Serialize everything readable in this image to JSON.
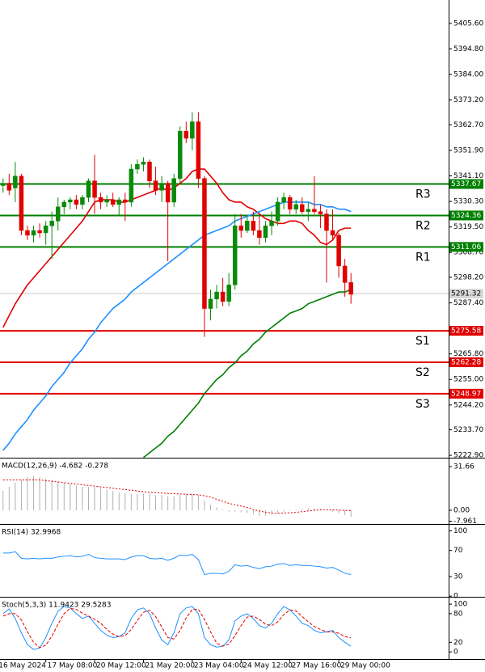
{
  "chart_data": [
    {
      "type": "candlestick",
      "xlim": [
        -0.5,
        73
      ],
      "xticks": [
        {
          "value": -1,
          "label": "16 May 2024"
        },
        {
          "value": 7,
          "label": "17 May 08:00"
        },
        {
          "value": 15,
          "label": "20 May 12:00"
        },
        {
          "value": 23,
          "label": "21 May 20:00"
        },
        {
          "value": 31,
          "label": "23 May 04:00"
        },
        {
          "value": 39,
          "label": "24 May 12:00"
        },
        {
          "value": 47,
          "label": "27 May 16:00"
        },
        {
          "value": 55,
          "label": "29 May 00:00"
        }
      ],
      "ylim": [
        5221.9,
        5415.5
      ],
      "yticks": [
        {
          "value": 5405.6,
          "label": "5405.60"
        },
        {
          "value": 5394.8,
          "label": "5394.80"
        },
        {
          "value": 5384,
          "label": "5384.00"
        },
        {
          "value": 5373.2,
          "label": "5373.20"
        },
        {
          "value": 5362.7,
          "label": "5362.70"
        },
        {
          "value": 5351.9,
          "label": "5351.90"
        },
        {
          "value": 5341.1,
          "label": "5341.10"
        },
        {
          "value": 5330.3,
          "label": "5330.30"
        },
        {
          "value": 5319.5,
          "label": "5319.50"
        },
        {
          "value": 5308.7,
          "label": "5308.70"
        },
        {
          "value": 5298.2,
          "label": "5298.20"
        },
        {
          "value": 5287.4,
          "label": "5287.40"
        },
        {
          "value": 5265.8,
          "label": "5265.80"
        },
        {
          "value": 5255,
          "label": "5255.00"
        },
        {
          "value": 5244.2,
          "label": "5244.20"
        },
        {
          "value": 5233.7,
          "label": "5233.70"
        },
        {
          "value": 5222.9,
          "label": "5222.90"
        }
      ],
      "up_color": "#0a8a0a",
      "down_color": "#e00000",
      "open": [
        5337,
        5338,
        5336,
        5341,
        5318,
        5316,
        5318,
        5317,
        5320,
        5322,
        5328,
        5330,
        5331,
        5329,
        5332,
        5339,
        5332,
        5330,
        5331,
        5329,
        5331,
        5330,
        5344,
        5346,
        5347,
        5339,
        5335,
        5338,
        5330,
        5340,
        5360,
        5357,
        5364,
        5340,
        5285,
        5289,
        5292,
        5288,
        5295,
        5320,
        5318,
        5322,
        5318,
        5315,
        5320,
        5322,
        5330,
        5332,
        5327,
        5329,
        5326,
        5327,
        5326,
        5325,
        5318,
        5316,
        5303,
        5296
      ],
      "high": [
        5340,
        5342,
        5347,
        5342,
        5320,
        5320,
        5321,
        5322,
        5326,
        5332,
        5331,
        5332,
        5333,
        5333,
        5340,
        5350,
        5334,
        5333,
        5334,
        5332,
        5334,
        5346,
        5348,
        5349,
        5348,
        5345,
        5341,
        5339,
        5342,
        5362,
        5364,
        5368,
        5368,
        5341,
        5293,
        5295,
        5298,
        5300,
        5325,
        5325,
        5324,
        5326,
        5324,
        5322,
        5326,
        5332,
        5334,
        5333,
        5331,
        5332,
        5330,
        5341,
        5329,
        5327,
        5327,
        5317,
        5306,
        5300
      ],
      "low": [
        5334,
        5333,
        5330,
        5316,
        5314,
        5313,
        5315,
        5312,
        5306,
        5318,
        5325,
        5327,
        5327,
        5327,
        5330,
        5325,
        5327,
        5328,
        5328,
        5324,
        5322,
        5328,
        5342,
        5343,
        5336,
        5333,
        5330,
        5305,
        5328,
        5338,
        5355,
        5352,
        5336,
        5273,
        5280,
        5285,
        5286,
        5286,
        5293,
        5315,
        5317,
        5316,
        5312,
        5313,
        5316,
        5320,
        5327,
        5325,
        5325,
        5325,
        5322,
        5325,
        5319,
        5296,
        5314,
        5298,
        5290,
        5287
      ],
      "close": [
        5338,
        5335,
        5341,
        5318,
        5316,
        5318,
        5317,
        5320,
        5322,
        5328,
        5330,
        5331,
        5329,
        5332,
        5339,
        5332,
        5330,
        5331,
        5329,
        5331,
        5330,
        5344,
        5346,
        5347,
        5339,
        5335,
        5338,
        5330,
        5340,
        5360,
        5357,
        5364,
        5340,
        5285,
        5289,
        5292,
        5288,
        5295,
        5320,
        5318,
        5322,
        5318,
        5315,
        5320,
        5322,
        5330,
        5332,
        5327,
        5329,
        5326,
        5327,
        5326,
        5325,
        5318,
        5316,
        5303,
        5296,
        5291
      ],
      "series": [
        {
          "color": "#e00000",
          "values": [
            5277,
            5282,
            5287,
            5291,
            5295,
            5298,
            5301,
            5304,
            5307,
            5310,
            5313,
            5316,
            5319,
            5322,
            5326,
            5330,
            5331,
            5331,
            5331,
            5330,
            5330,
            5331,
            5332,
            5333,
            5334,
            5335,
            5336,
            5335,
            5336,
            5338,
            5340,
            5343,
            5344,
            5344,
            5341,
            5338,
            5334,
            5331,
            5330,
            5330,
            5328,
            5327,
            5325,
            5323,
            5322,
            5321,
            5321,
            5322,
            5322,
            5321,
            5318,
            5316,
            5313,
            5312,
            5314,
            5318,
            5319,
            5319
          ]
        },
        {
          "color": "#1e90ff",
          "values": [
            5225,
            5228,
            5232,
            5235,
            5238,
            5242,
            5245,
            5248,
            5252,
            5255,
            5258,
            5262,
            5265,
            5268,
            5272,
            5275,
            5279,
            5282,
            5285,
            5287,
            5289,
            5292,
            5294,
            5296,
            5298,
            5300,
            5302,
            5304,
            5306,
            5308,
            5310,
            5312,
            5314,
            5316,
            5317,
            5318,
            5319,
            5320,
            5322,
            5323,
            5324,
            5325,
            5326,
            5327,
            5328,
            5329,
            5330,
            5330,
            5330,
            5330,
            5330,
            5329,
            5329,
            5328,
            5328,
            5327,
            5327,
            5326
          ]
        },
        {
          "color": "#008000",
          "values": [
            null,
            null,
            null,
            null,
            null,
            null,
            null,
            null,
            null,
            null,
            null,
            null,
            null,
            null,
            null,
            null,
            null,
            null,
            null,
            null,
            null,
            null,
            null,
            5222,
            5224,
            5226,
            5228,
            5231,
            5233,
            5236,
            5239,
            5242,
            5245,
            5249,
            5252,
            5255,
            5257,
            5260,
            5262,
            5265,
            5267,
            5270,
            5272,
            5275,
            5277,
            5279,
            5281,
            5283,
            5284,
            5285,
            5287,
            5288,
            5289,
            5290,
            5291,
            5292,
            5292,
            5293
          ]
        }
      ],
      "levels": [
        {
          "name": "R3",
          "value": 5337.67,
          "color": "#008000"
        },
        {
          "name": "R2",
          "value": 5324.36,
          "color": "#008000"
        },
        {
          "name": "R1",
          "value": 5311.06,
          "color": "#008000"
        },
        {
          "name": "S1",
          "value": 5275.58,
          "color": "#e00000"
        },
        {
          "name": "S2",
          "value": 5262.28,
          "color": "#e00000"
        },
        {
          "name": "S3",
          "value": 5248.97,
          "color": "#e00000"
        }
      ],
      "last_price": 5291.32
    },
    {
      "type": "macd",
      "title": "MACD(12,26,9) -4.682 -0.278",
      "ylim": [
        -9.97,
        36.94
      ],
      "yticks": [
        31.66,
        {
          "value": 0,
          "label": "0.00"
        },
        -7.961
      ],
      "series": [
        {
          "kind": "histogram",
          "color": "#b0b0b0",
          "values": [
            14,
            17,
            20,
            22,
            24,
            25,
            24,
            23,
            22,
            21,
            20,
            19,
            18,
            17,
            17,
            17,
            16,
            15,
            14,
            13,
            12,
            12,
            12,
            12,
            12,
            11,
            11,
            10,
            10,
            11,
            12,
            12,
            11,
            7,
            4,
            2,
            0.5,
            -1,
            -1,
            -1.5,
            -2,
            -3,
            -4,
            -4,
            -3,
            -2,
            -1,
            -0.5,
            0.5,
            1,
            1.5,
            1.5,
            1,
            0,
            -1,
            -2,
            -3.5,
            -4.682
          ]
        },
        {
          "kind": "dotted",
          "color": "#e00000",
          "values": [
            22,
            22,
            22,
            22,
            22,
            22,
            22,
            21.5,
            21,
            20.5,
            20,
            19.5,
            19,
            18.5,
            18,
            17.5,
            17,
            16.5,
            16,
            15.5,
            15,
            14.5,
            14,
            13.5,
            13,
            12.8,
            12.5,
            12.2,
            12,
            11.8,
            11.6,
            11.4,
            11.2,
            10.5,
            9.5,
            8,
            6.5,
            5,
            4,
            3,
            2,
            0.5,
            -0.5,
            -1.5,
            -2,
            -2.2,
            -2,
            -1.8,
            -1.5,
            -1,
            -0.5,
            0,
            0.3,
            0.4,
            0.3,
            0.1,
            -0.1,
            -0.278
          ]
        }
      ]
    },
    {
      "type": "line",
      "title": "RSI(14) 32.9968",
      "ylim": [
        -1,
        108
      ],
      "yticks": [
        100,
        70,
        30,
        0
      ],
      "series": [
        {
          "kind": "solid",
          "color": "#1e90ff",
          "values": [
            66,
            66,
            68,
            58,
            57,
            58,
            57,
            58,
            58,
            60,
            61,
            62,
            60,
            61,
            64,
            59,
            58,
            57,
            57,
            57,
            56,
            60,
            62,
            62,
            58,
            57,
            58,
            55,
            58,
            63,
            62,
            64,
            56,
            33,
            35,
            35,
            34,
            38,
            48,
            46,
            47,
            44,
            42,
            45,
            46,
            49,
            50,
            47,
            48,
            47,
            47,
            46,
            45,
            43,
            44,
            40,
            35,
            32.9968
          ]
        }
      ]
    },
    {
      "type": "line",
      "title": "Stoch(5,3,3) 11.9423 29.5283",
      "ylim": [
        -15,
        112
      ],
      "yticks": [
        100,
        80,
        20,
        0
      ],
      "series": [
        {
          "kind": "solid",
          "color": "#1e90ff",
          "values": [
            80,
            90,
            70,
            40,
            15,
            5,
            8,
            30,
            60,
            85,
            95,
            92,
            80,
            70,
            75,
            60,
            45,
            35,
            30,
            32,
            40,
            70,
            88,
            92,
            80,
            50,
            25,
            15,
            40,
            80,
            92,
            95,
            80,
            30,
            15,
            10,
            12,
            25,
            65,
            75,
            80,
            70,
            55,
            50,
            60,
            80,
            95,
            88,
            75,
            60,
            55,
            45,
            40,
            42,
            45,
            30,
            20,
            11.9423
          ]
        },
        {
          "kind": "dashed",
          "color": "#e00000",
          "values": [
            75,
            80,
            80,
            67,
            42,
            20,
            9,
            14,
            33,
            58,
            80,
            91,
            89,
            81,
            75,
            68,
            60,
            47,
            37,
            32,
            34,
            47,
            66,
            83,
            87,
            74,
            52,
            30,
            27,
            45,
            71,
            89,
            89,
            68,
            42,
            18,
            12,
            16,
            34,
            55,
            73,
            75,
            68,
            58,
            55,
            63,
            78,
            88,
            86,
            74,
            63,
            53,
            47,
            42,
            42,
            39,
            32,
            29.5283
          ]
        }
      ]
    }
  ]
}
